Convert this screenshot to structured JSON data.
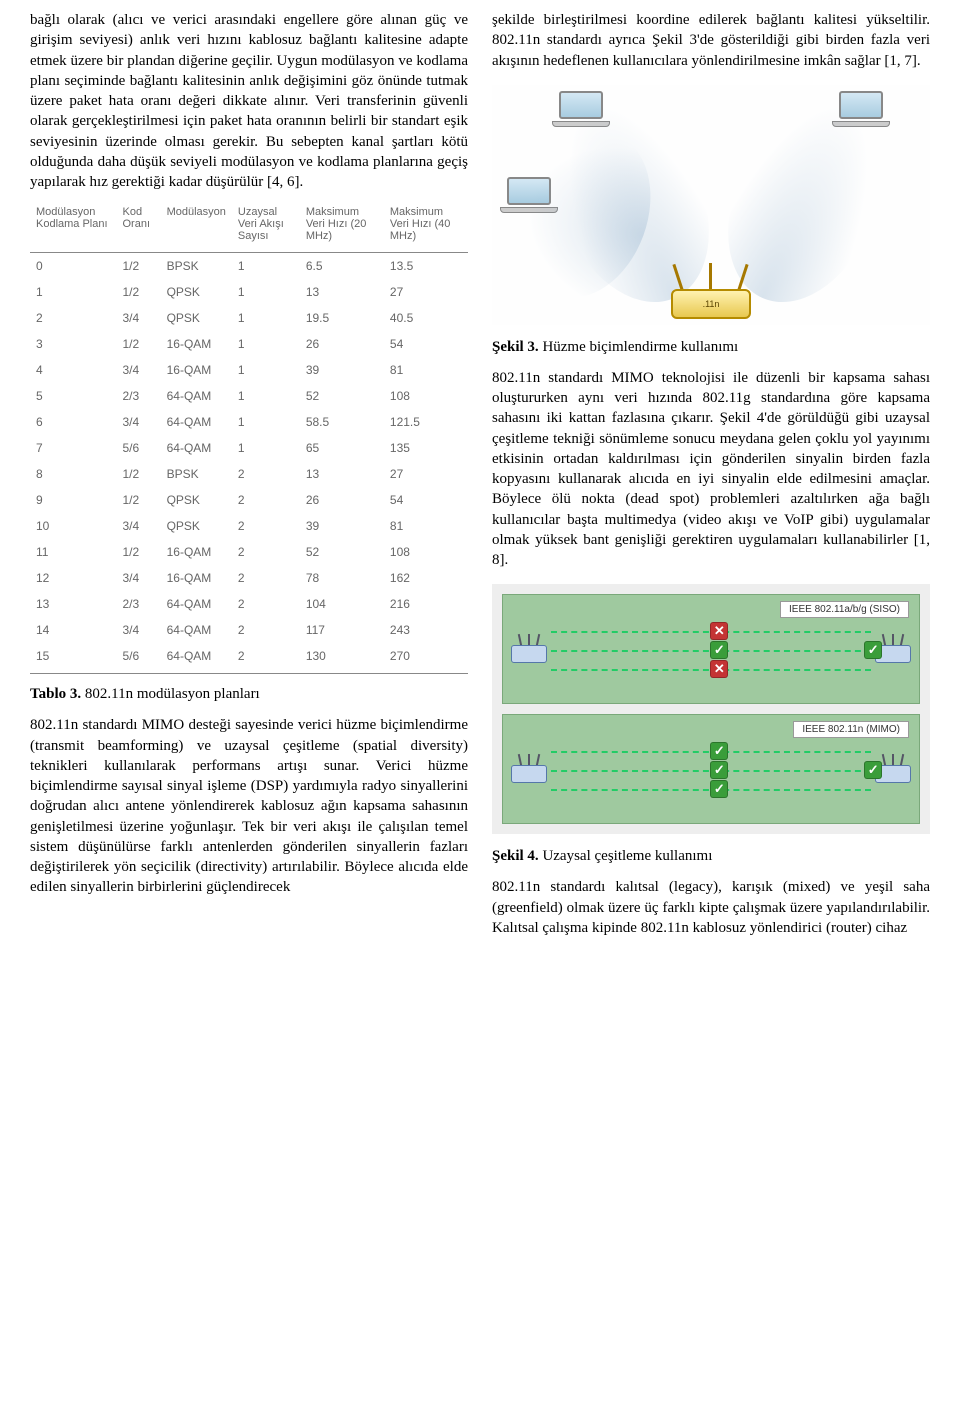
{
  "left": {
    "p1": "bağlı olarak (alıcı ve verici arasındaki engellere göre alınan güç ve girişim seviyesi) anlık veri hızını kablosuz bağlantı kalitesine adapte etmek üzere bir plandan diğerine geçilir. Uygun modülasyon ve kodlama planı seçiminde bağlantı kalitesinin anlık değişimini göz önünde tutmak üzere paket hata oranı değeri dikkate alınır. Veri transferinin güvenli olarak gerçekleştirilmesi için paket hata oranının belirli bir standart eşik seviyesinin üzerinde olması gerekir. Bu sebepten kanal şartları kötü olduğunda daha düşük seviyeli modülasyon ve kodlama planlarına geçiş yapılarak hız gerektiği kadar düşürülür [4, 6].",
    "table_caption_bold": "Tablo 3.",
    "table_caption_rest": " 802.11n modülasyon planları",
    "p2": "802.11n standardı MIMO desteği sayesinde verici hüzme biçimlendirme (transmit beamforming) ve uzaysal çeşitleme (spatial diversity) teknikleri kullanılarak performans artışı sunar. Verici hüzme biçimlendirme sayısal sinyal işleme (DSP) yardımıyla radyo sinyallerini doğrudan alıcı antene yönlendirerek kablosuz ağın kapsama sahasının genişletilmesi üzerine yoğunlaşır. Tek bir veri akışı ile çalışılan temel sistem düşünülürse farklı antenlerden gönderilen sinyallerin fazları değiştirilerek yön seçicilik (directivity) artırılabilir. Böylece alıcıda elde edilen sinyallerin birbirlerini güçlendirecek"
  },
  "right": {
    "p1": "şekilde birleştirilmesi koordine edilerek bağlantı kalitesi yükseltilir. 802.11n standardı ayrıca Şekil 3'de gösterildiği gibi birden fazla veri akışının hedeflenen kullanıcılara yönlendirilmesine imkân sağlar [1, 7].",
    "fig3_caption_bold": "Şekil 3.",
    "fig3_caption_rest": " Hüzme biçimlendirme kullanımı",
    "p2": "802.11n standardı MIMO teknolojisi ile düzenli bir kapsama sahası oluştururken aynı veri hızında 802.11g standardına göre kapsama sahasını iki kattan fazlasına çıkarır. Şekil 4'de görüldüğü gibi uzaysal çeşitleme tekniği sönümleme sonucu meydana gelen çoklu yol yayınımı etkisinin ortadan kaldırılması için gönderilen sinyalin birden fazla kopyasını kullanarak alıcıda en iyi sinyalin elde edilmesini amaçlar. Böylece ölü nokta (dead spot) problemleri azaltılırken ağa bağlı kullanıcılar başta multimedya (video akışı ve VoIP gibi) uygulamalar olmak yüksek bant genişliği gerektiren uygulamaları kullanabilirler [1, 8].",
    "fig4_caption_bold": "Şekil 4.",
    "fig4_caption_rest": " Uzaysal çeşitleme kullanımı",
    "p3": "802.11n standardı kalıtsal (legacy), karışık (mixed) ve yeşil saha (greenfield) olmak üzere üç farklı kipte çalışmak üzere yapılandırılabilir. Kalıtsal çalışma kipinde 802.11n kablosuz yönlendirici (router) cihaz"
  },
  "table": {
    "headers": [
      "Modülasyon Kodlama Planı",
      "Kod Oranı",
      "Modülasyon",
      "Uzaysal Veri Akışı Sayısı",
      "Maksimum Veri Hızı (20 MHz)",
      "Maksimum Veri Hızı (40 MHz)"
    ],
    "rows": [
      [
        "0",
        "1/2",
        "BPSK",
        "1",
        "6.5",
        "13.5"
      ],
      [
        "1",
        "1/2",
        "QPSK",
        "1",
        "13",
        "27"
      ],
      [
        "2",
        "3/4",
        "QPSK",
        "1",
        "19.5",
        "40.5"
      ],
      [
        "3",
        "1/2",
        "16-QAM",
        "1",
        "26",
        "54"
      ],
      [
        "4",
        "3/4",
        "16-QAM",
        "1",
        "39",
        "81"
      ],
      [
        "5",
        "2/3",
        "64-QAM",
        "1",
        "52",
        "108"
      ],
      [
        "6",
        "3/4",
        "64-QAM",
        "1",
        "58.5",
        "121.5"
      ],
      [
        "7",
        "5/6",
        "64-QAM",
        "1",
        "65",
        "135"
      ],
      [
        "8",
        "1/2",
        "BPSK",
        "2",
        "13",
        "27"
      ],
      [
        "9",
        "1/2",
        "QPSK",
        "2",
        "26",
        "54"
      ],
      [
        "10",
        "3/4",
        "QPSK",
        "2",
        "39",
        "81"
      ],
      [
        "11",
        "1/2",
        "16-QAM",
        "2",
        "52",
        "108"
      ],
      [
        "12",
        "3/4",
        "16-QAM",
        "2",
        "78",
        "162"
      ],
      [
        "13",
        "2/3",
        "64-QAM",
        "2",
        "104",
        "216"
      ],
      [
        "14",
        "3/4",
        "64-QAM",
        "2",
        "117",
        "243"
      ],
      [
        "15",
        "5/6",
        "64-QAM",
        "2",
        "130",
        "270"
      ]
    ]
  },
  "spatial": {
    "label_siso": "IEEE 802.11a/b/g (SISO)",
    "label_mimo": "IEEE 802.11n (MIMO)",
    "router_label": ".11n"
  }
}
